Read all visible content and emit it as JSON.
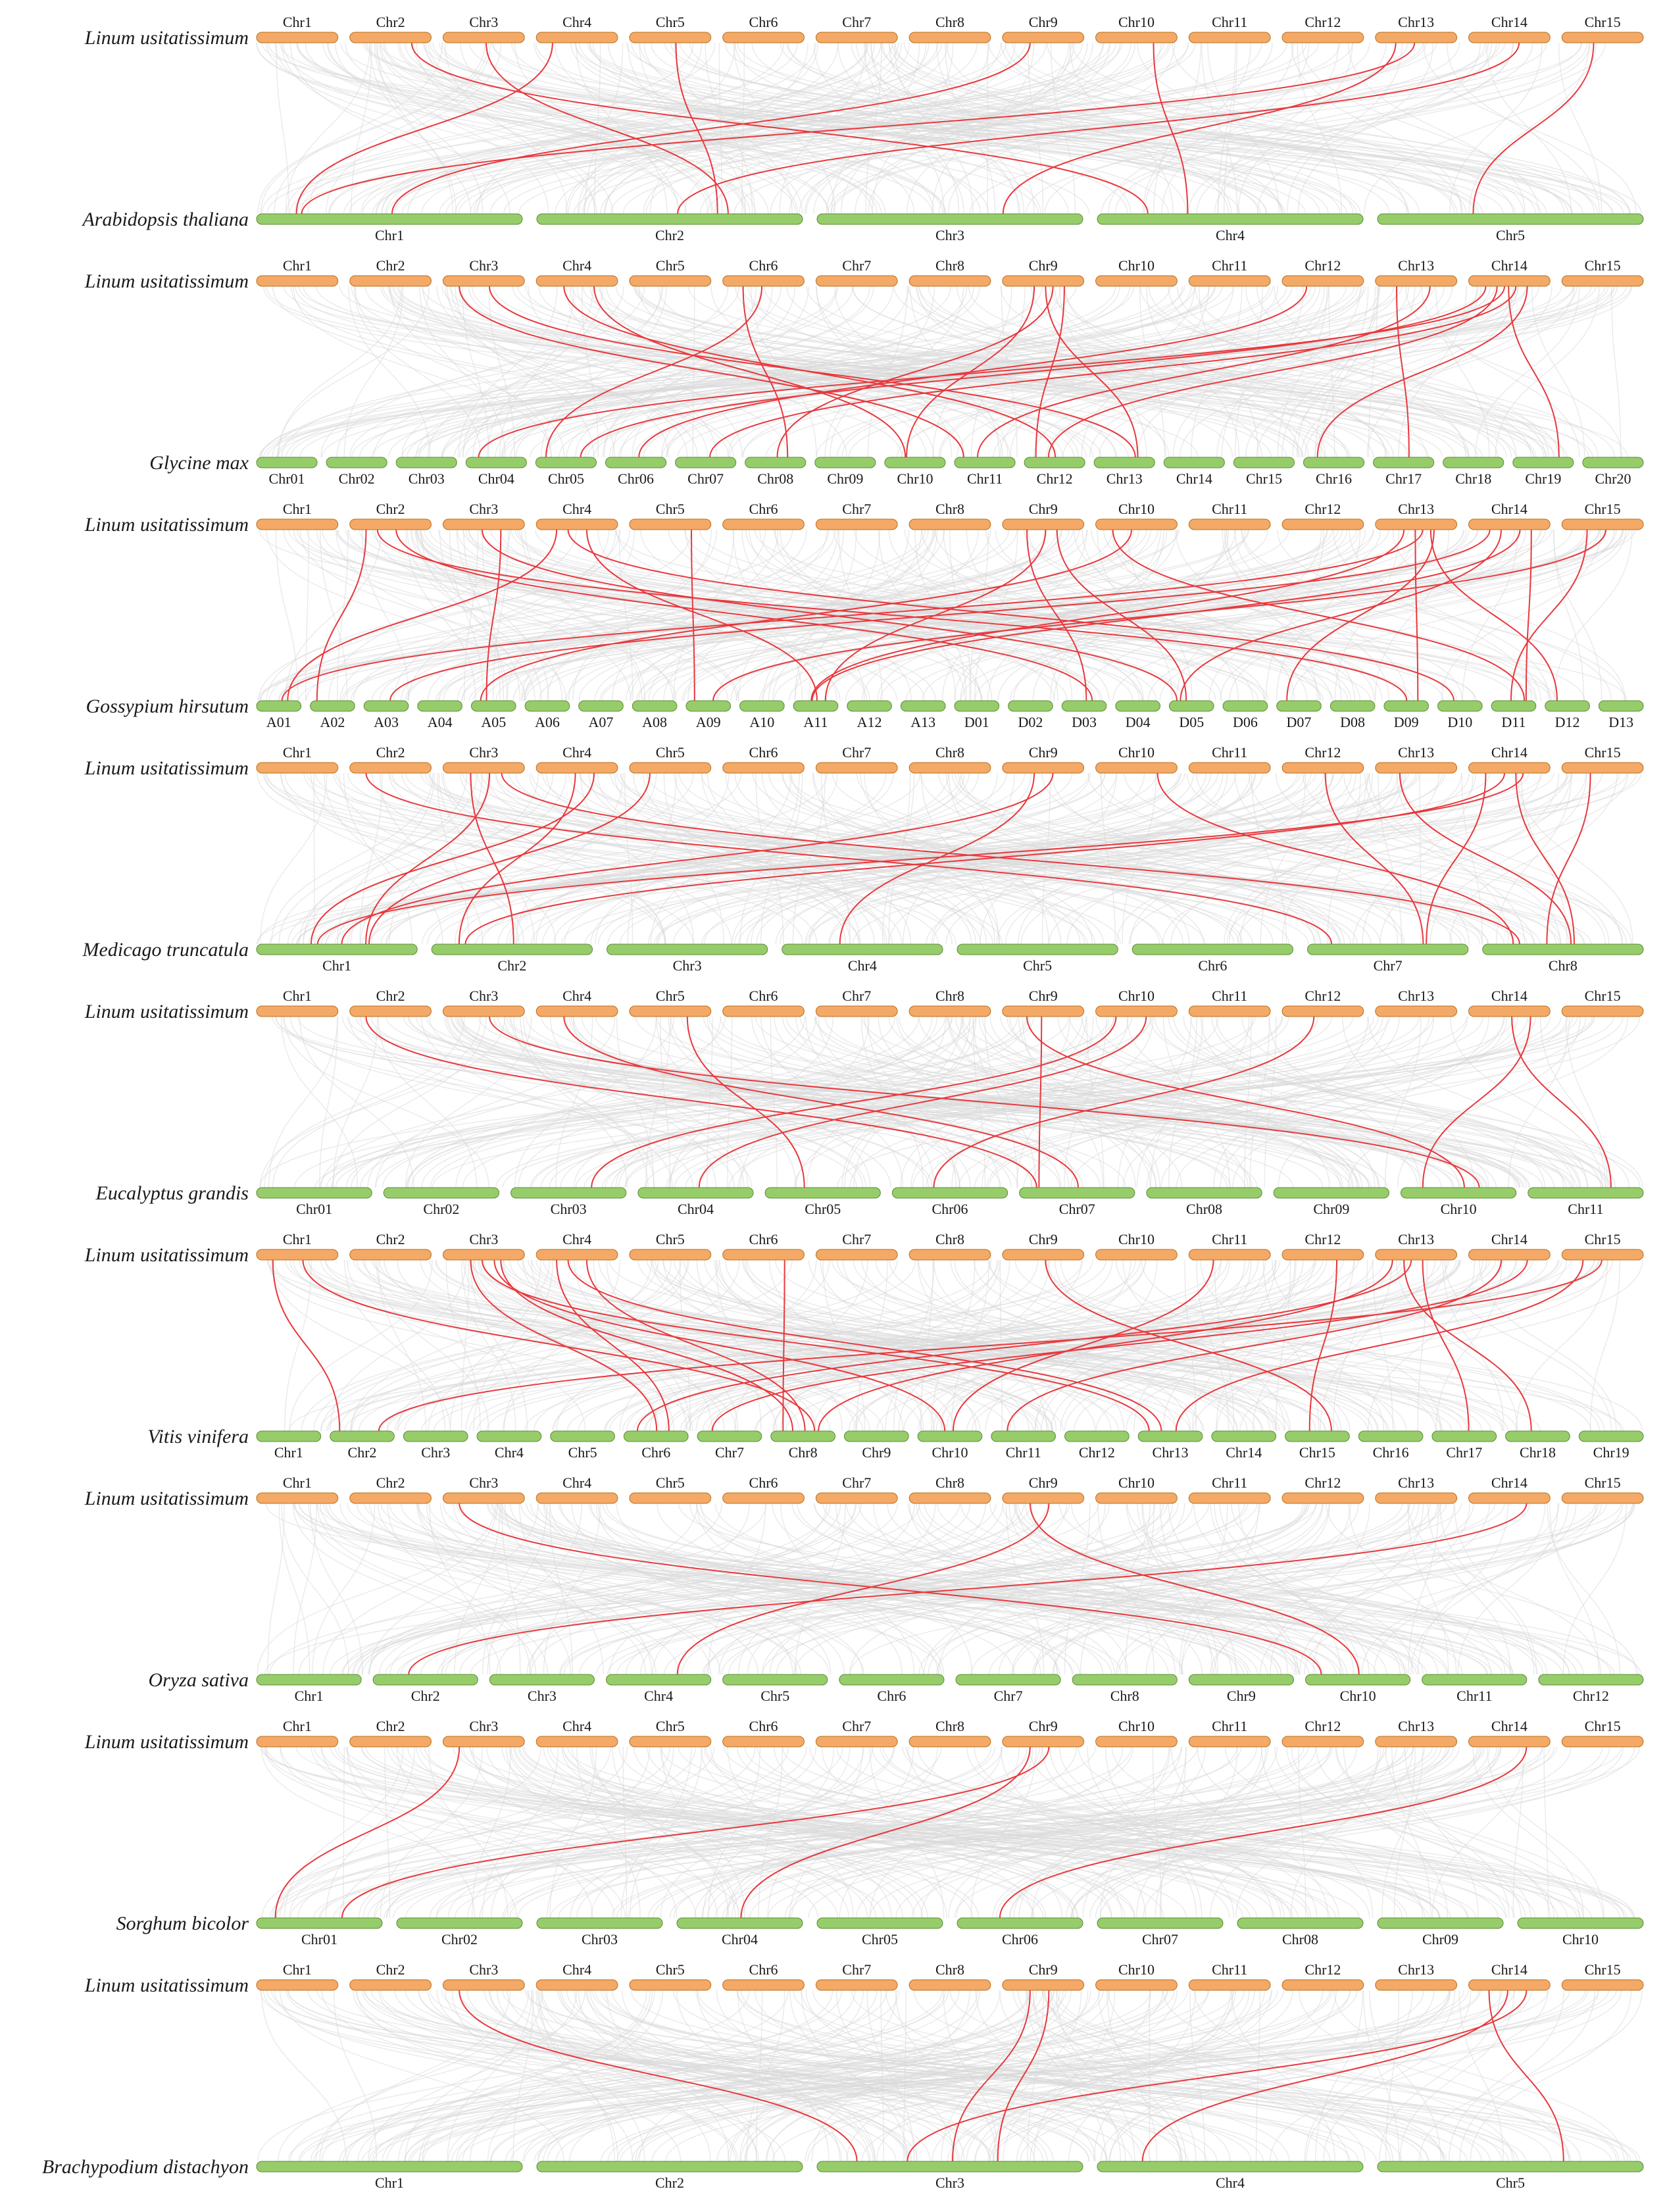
{
  "colors": {
    "reference": "#f4a966",
    "reference_edge": "#b8701e",
    "target": "#97cc6a",
    "target_edge": "#5b8c35",
    "background_link": "#d9d9d9",
    "highlight_link": "#e8383d"
  },
  "reference_species": "Linum usitatissimum",
  "reference_chromosomes": [
    "Chr1",
    "Chr2",
    "Chr3",
    "Chr4",
    "Chr5",
    "Chr6",
    "Chr7",
    "Chr8",
    "Chr9",
    "Chr10",
    "Chr11",
    "Chr12",
    "Chr13",
    "Chr14",
    "Chr15"
  ],
  "panels": [
    {
      "species": "Arabidopsis thaliana",
      "chromosomes": [
        "Chr1",
        "Chr2",
        "Chr3",
        "Chr4",
        "Chr5"
      ],
      "links": [
        [
          3,
          0
        ],
        [
          4,
          1
        ],
        [
          8,
          0
        ],
        [
          9,
          3
        ],
        [
          12,
          0
        ],
        [
          12,
          2
        ],
        [
          13,
          1
        ],
        [
          14,
          4
        ],
        [
          1,
          3
        ],
        [
          2,
          1
        ]
      ]
    },
    {
      "species": "Glycine max",
      "chromosomes": [
        "Chr01",
        "Chr02",
        "Chr03",
        "Chr04",
        "Chr05",
        "Chr06",
        "Chr07",
        "Chr08",
        "Chr09",
        "Chr10",
        "Chr11",
        "Chr12",
        "Chr13",
        "Chr14",
        "Chr15",
        "Chr16",
        "Chr17",
        "Chr18",
        "Chr19",
        "Chr20"
      ],
      "links": [
        [
          2,
          10
        ],
        [
          2,
          12
        ],
        [
          3,
          11
        ],
        [
          3,
          9
        ],
        [
          5,
          4
        ],
        [
          5,
          7
        ],
        [
          8,
          7
        ],
        [
          8,
          9
        ],
        [
          8,
          11
        ],
        [
          8,
          12
        ],
        [
          11,
          5
        ],
        [
          12,
          10
        ],
        [
          13,
          3
        ],
        [
          13,
          4
        ],
        [
          13,
          6
        ],
        [
          13,
          11
        ],
        [
          13,
          15
        ],
        [
          13,
          18
        ],
        [
          12,
          16
        ]
      ]
    },
    {
      "species": "Gossypium hirsutum",
      "chromosomes": [
        "A01",
        "A02",
        "A03",
        "A04",
        "A05",
        "A06",
        "A07",
        "A08",
        "A09",
        "A10",
        "A11",
        "A12",
        "A13",
        "D01",
        "D02",
        "D03",
        "D04",
        "D05",
        "D06",
        "D07",
        "D08",
        "D09",
        "D10",
        "D11",
        "D12",
        "D13"
      ],
      "links": [
        [
          1,
          1
        ],
        [
          1,
          15
        ],
        [
          1,
          21
        ],
        [
          2,
          4
        ],
        [
          2,
          17
        ],
        [
          3,
          0
        ],
        [
          3,
          10
        ],
        [
          3,
          22
        ],
        [
          4,
          8
        ],
        [
          8,
          10
        ],
        [
          8,
          15
        ],
        [
          8,
          17
        ],
        [
          9,
          4
        ],
        [
          9,
          23
        ],
        [
          12,
          0
        ],
        [
          12,
          10
        ],
        [
          12,
          19
        ],
        [
          12,
          21
        ],
        [
          13,
          2
        ],
        [
          13,
          10
        ],
        [
          13,
          17
        ],
        [
          13,
          23
        ],
        [
          14,
          8
        ],
        [
          14,
          23
        ],
        [
          12,
          24
        ]
      ]
    },
    {
      "species": "Medicago truncatula",
      "chromosomes": [
        "Chr1",
        "Chr2",
        "Chr3",
        "Chr4",
        "Chr5",
        "Chr6",
        "Chr7",
        "Chr8"
      ],
      "links": [
        [
          1,
          6
        ],
        [
          2,
          0
        ],
        [
          2,
          1
        ],
        [
          3,
          0
        ],
        [
          3,
          1
        ],
        [
          4,
          0
        ],
        [
          8,
          0
        ],
        [
          8,
          3
        ],
        [
          9,
          7
        ],
        [
          11,
          6
        ],
        [
          12,
          7
        ],
        [
          13,
          0
        ],
        [
          13,
          1
        ],
        [
          13,
          6
        ],
        [
          13,
          7
        ],
        [
          14,
          7
        ],
        [
          2,
          7
        ]
      ]
    },
    {
      "species": "Eucalyptus grandis",
      "chromosomes": [
        "Chr01",
        "Chr02",
        "Chr03",
        "Chr04",
        "Chr05",
        "Chr06",
        "Chr07",
        "Chr08",
        "Chr09",
        "Chr10",
        "Chr11"
      ],
      "links": [
        [
          1,
          6
        ],
        [
          2,
          9
        ],
        [
          3,
          6
        ],
        [
          4,
          4
        ],
        [
          8,
          6
        ],
        [
          9,
          2
        ],
        [
          9,
          3
        ],
        [
          11,
          5
        ],
        [
          13,
          9
        ],
        [
          13,
          10
        ],
        [
          8,
          9
        ]
      ]
    },
    {
      "species": "Vitis vinifera",
      "chromosomes": [
        "Chr1",
        "Chr2",
        "Chr3",
        "Chr4",
        "Chr5",
        "Chr6",
        "Chr7",
        "Chr8",
        "Chr9",
        "Chr10",
        "Chr11",
        "Chr12",
        "Chr13",
        "Chr14",
        "Chr15",
        "Chr16",
        "Chr17",
        "Chr18",
        "Chr19"
      ],
      "links": [
        [
          0,
          1
        ],
        [
          0,
          7
        ],
        [
          2,
          5
        ],
        [
          2,
          7
        ],
        [
          2,
          12
        ],
        [
          3,
          5
        ],
        [
          3,
          7
        ],
        [
          3,
          12
        ],
        [
          5,
          7
        ],
        [
          8,
          14
        ],
        [
          10,
          9
        ],
        [
          11,
          14
        ],
        [
          12,
          5
        ],
        [
          12,
          7
        ],
        [
          12,
          16
        ],
        [
          12,
          17
        ],
        [
          13,
          6
        ],
        [
          14,
          1
        ],
        [
          14,
          12
        ],
        [
          2,
          9
        ],
        [
          13,
          10
        ]
      ]
    },
    {
      "species": "Oryza sativa",
      "chromosomes": [
        "Chr1",
        "Chr2",
        "Chr3",
        "Chr4",
        "Chr5",
        "Chr6",
        "Chr7",
        "Chr8",
        "Chr9",
        "Chr10",
        "Chr11",
        "Chr12"
      ],
      "links": [
        [
          2,
          9
        ],
        [
          8,
          3
        ],
        [
          8,
          9
        ],
        [
          13,
          1
        ]
      ]
    },
    {
      "species": "Sorghum bicolor",
      "chromosomes": [
        "Chr01",
        "Chr02",
        "Chr03",
        "Chr04",
        "Chr05",
        "Chr06",
        "Chr07",
        "Chr08",
        "Chr09",
        "Chr10"
      ],
      "links": [
        [
          2,
          0
        ],
        [
          8,
          0
        ],
        [
          8,
          3
        ],
        [
          13,
          5
        ]
      ]
    },
    {
      "species": "Brachypodium distachyon",
      "chromosomes": [
        "Chr1",
        "Chr2",
        "Chr3",
        "Chr4",
        "Chr5"
      ],
      "links": [
        [
          2,
          2
        ],
        [
          8,
          2
        ],
        [
          8,
          2
        ],
        [
          13,
          2
        ],
        [
          13,
          3
        ],
        [
          13,
          4
        ]
      ]
    }
  ]
}
